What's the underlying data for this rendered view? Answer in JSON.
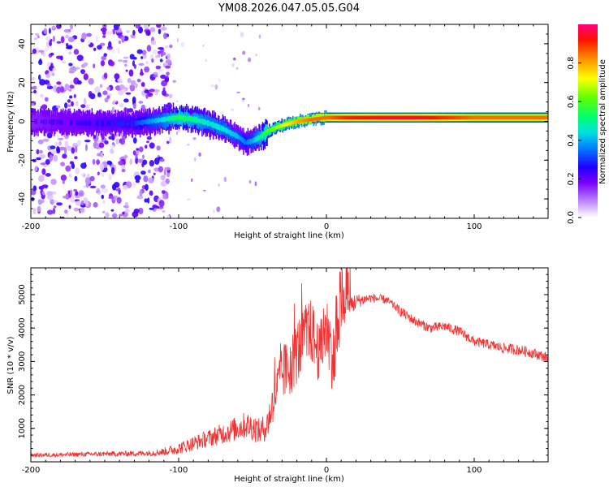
{
  "chart_data": [
    {
      "type": "heatmap",
      "title": "YM08.2026.047.05.05.G04",
      "xlabel": "Height of straight line (km)",
      "ylabel": "Frequency (Hz)",
      "xlim": [
        -200,
        150
      ],
      "ylim": [
        -50,
        50
      ],
      "x_ticks": [
        -200,
        -100,
        0,
        100
      ],
      "y_ticks": [
        -40,
        -20,
        0,
        20,
        40
      ],
      "colorbar": {
        "label": "Normalized spectral amplitude",
        "range": [
          0,
          1
        ],
        "ticks": [
          "0.0",
          "0.2",
          "0.4",
          "0.6",
          "0.8"
        ],
        "tick_values": [
          0.0,
          0.2,
          0.4,
          0.6,
          0.8
        ],
        "colors": [
          "#ffffff",
          "#7a00ff",
          "#0000ff",
          "#00c8ff",
          "#00ff80",
          "#40ff00",
          "#ffff00",
          "#ff8000",
          "#ff0000",
          "#ff0080"
        ]
      },
      "ridge": {
        "x": [
          -200,
          -160,
          -130,
          -110,
          -100,
          -90,
          -80,
          -70,
          -60,
          -55,
          -50,
          -45,
          -40,
          -30,
          -20,
          -10,
          0,
          10,
          20,
          40,
          60,
          80,
          100,
          150
        ],
        "frequency": [
          0,
          -1,
          -1,
          1,
          2,
          1,
          -1,
          -4,
          -8,
          -11,
          -10,
          -8,
          -5,
          -2,
          0,
          1,
          2,
          2,
          2,
          2,
          2,
          2,
          2,
          2
        ],
        "amplitude": [
          0.2,
          0.25,
          0.3,
          0.45,
          0.55,
          0.5,
          0.45,
          0.45,
          0.4,
          0.35,
          0.4,
          0.5,
          0.6,
          0.7,
          0.8,
          0.85,
          0.85,
          0.9,
          0.92,
          0.95,
          0.95,
          0.9,
          0.85,
          0.85
        ]
      }
    },
    {
      "type": "line",
      "title": "",
      "xlabel": "Height of straight line (km)",
      "ylabel": "SNR (10 * v/v)",
      "xlim": [
        -200,
        150
      ],
      "ylim": [
        0,
        5800
      ],
      "x_ticks": [
        -200,
        -100,
        0,
        100
      ],
      "y_ticks": [
        1000,
        2000,
        3000,
        4000,
        5000
      ],
      "series": [
        {
          "name": "SNR",
          "color": "#ee3333",
          "x": [
            -200,
            -180,
            -160,
            -140,
            -120,
            -110,
            -100,
            -90,
            -80,
            -70,
            -60,
            -55,
            -50,
            -45,
            -40,
            -35,
            -30,
            -25,
            -20,
            -15,
            -10,
            -5,
            0,
            5,
            10,
            15,
            20,
            30,
            40,
            45,
            50,
            60,
            70,
            80,
            90,
            100,
            110,
            120,
            130,
            140,
            150
          ],
          "y": [
            200,
            210,
            230,
            240,
            260,
            300,
            400,
            550,
            700,
            850,
            1000,
            1100,
            1050,
            900,
            1100,
            2000,
            2600,
            2800,
            3300,
            3600,
            3900,
            3200,
            4000,
            3000,
            4700,
            4600,
            4800,
            4900,
            4850,
            4700,
            4500,
            4200,
            4000,
            4050,
            3900,
            3600,
            3500,
            3400,
            3350,
            3250,
            3100
          ],
          "noise": [
            60,
            70,
            70,
            80,
            90,
            120,
            180,
            220,
            260,
            320,
            380,
            400,
            420,
            380,
            450,
            700,
            800,
            900,
            1000,
            1100,
            1000,
            900,
            1000,
            1100,
            800,
            500,
            220,
            140,
            130,
            120,
            150,
            150,
            150,
            150,
            150,
            150,
            150,
            160,
            160,
            160,
            160
          ]
        }
      ]
    }
  ]
}
